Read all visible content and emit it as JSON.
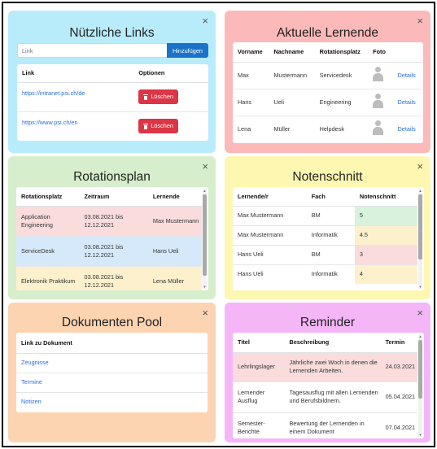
{
  "colors": {
    "card1_bg": "#b8ecfa",
    "card2_bg": "#fcb9b9",
    "card3_bg": "#d6eecc",
    "card4_bg": "#fdf7b2",
    "card5_bg": "#fdd4b2",
    "card6_bg": "#f5b6f7",
    "primary": "#1a73c9",
    "danger": "#dc3545",
    "row_red": "#fadcdc",
    "row_blue": "#d6e9fa",
    "row_yellow": "#fcf1cc",
    "row_green": "#d9f2de"
  },
  "close_symbol": "×",
  "links_card": {
    "title": "Nützliche Links",
    "input_placeholder": "Link",
    "add_button": "Hinzufügen",
    "headers": {
      "link": "Link",
      "options": "Optionen"
    },
    "rows": [
      {
        "url": "https://intranet.psi.ch/de",
        "delete": "Löschen"
      },
      {
        "url": "https://www.psi.ch/en",
        "delete": "Löschen"
      }
    ]
  },
  "learners_card": {
    "title": "Aktuelle Lernende",
    "headers": {
      "first": "Vorname",
      "last": "Nachname",
      "rotation": "Rotationsplatz",
      "photo": "Foto"
    },
    "rows": [
      {
        "first": "Max",
        "last": "Mustermann",
        "rotation": "Servicedesk",
        "details": "Details"
      },
      {
        "first": "Hans",
        "last": "Ueli",
        "rotation": "Engineering",
        "details": "Details"
      },
      {
        "first": "Lena",
        "last": "Müller",
        "rotation": "Helpdesk",
        "details": "Details"
      }
    ]
  },
  "rotation_card": {
    "title": "Rotationsplan",
    "headers": {
      "place": "Rotationsplatz",
      "period": "Zeitraum",
      "learner": "Lernende"
    },
    "rows": [
      {
        "place": "Application Engineering",
        "period": "03.08.2021 bis 12.12.2021",
        "learner": "Max Mustermann"
      },
      {
        "place": "ServiceDesk",
        "period": "03.08.2021 bis 12.12.2021",
        "learner": "Hans Ueli"
      },
      {
        "place": "Elektronik Praktikum",
        "period": "03.08.2021 bis 12.12.2021",
        "learner": "Lena Müller"
      }
    ]
  },
  "grades_card": {
    "title": "Notenschnitt",
    "headers": {
      "learner": "Lernende/r",
      "subject": "Fach",
      "average": "Notenschnitt"
    },
    "rows": [
      {
        "learner": "Max Mustermann",
        "subject": "BM",
        "average": "5"
      },
      {
        "learner": "Max Mustermann",
        "subject": "Informatik",
        "average": "4.5"
      },
      {
        "learner": "Hans Ueli",
        "subject": "BM",
        "average": "3"
      },
      {
        "learner": "Hans Ueli",
        "subject": "Informatik",
        "average": "4"
      }
    ]
  },
  "docs_card": {
    "title": "Dokumenten Pool",
    "header": "Link zu Dokument",
    "items": [
      "Zeugnisse",
      "Termine",
      "Notizen"
    ]
  },
  "reminder_card": {
    "title": "Reminder",
    "headers": {
      "title": "Titel",
      "description": "Beschreibung",
      "date": "Termin"
    },
    "rows": [
      {
        "title": "Lehrlingslager",
        "description": "Jährliche zwei Woch in denen die Lernenden Arbeiten.",
        "date": "24.03.2021"
      },
      {
        "title": "Lernender Ausflug",
        "description": "Tagesausflug mit allen Lernenden und Berufsbildnern.",
        "date": "05.04.2021"
      },
      {
        "title": "Semester-Berichte",
        "description": "Bewertung der Lernenden in einem Dokument",
        "date": "07.04.2021"
      }
    ]
  }
}
